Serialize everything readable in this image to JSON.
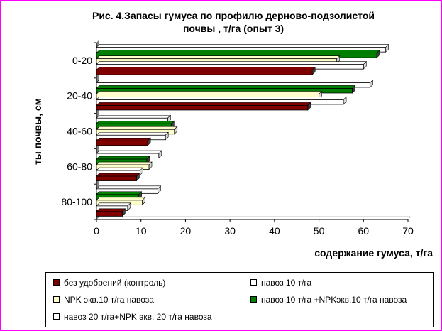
{
  "chart_data": {
    "type": "bar",
    "orientation": "horizontal",
    "title": "Рис. 4.Запасы гумуса по профилю дерново-подзолистой почвы , т/га (опыт 3)",
    "title_lines": [
      "Рис. 4.Запасы гумуса по профилю дерново-подзолистой",
      "почвы , т/га (опыт 3)"
    ],
    "xlabel": "содержание гумуса, т/га",
    "ylabel": "",
    "ylabel_fragment": "ты почвы, см",
    "xlim": [
      0,
      70
    ],
    "xticks": [
      0,
      10,
      20,
      30,
      40,
      50,
      60,
      70
    ],
    "grid": false,
    "legend_position": "bottom",
    "categories": [
      "0-20",
      "20-40",
      "40-60",
      "60-80",
      "80-100"
    ],
    "series": [
      {
        "name": "без удобрений (контроль)",
        "color": "#800000",
        "values": [
          48.5,
          47.5,
          11.5,
          9.0,
          5.8
        ]
      },
      {
        "name": "навоз 10 т/га",
        "color": "#ffffff",
        "values": [
          60.0,
          55.5,
          15.5,
          9.8,
          7.0
        ]
      },
      {
        "name": "NPK экв.10 т/га навоза",
        "color": "#ffffcc",
        "values": [
          54.0,
          50.0,
          17.5,
          11.8,
          10.3
        ]
      },
      {
        "name": "навоз 10 т/га +NPKэкв.10 т/га навоза",
        "color": "#008000",
        "values": [
          63.0,
          57.5,
          16.8,
          11.3,
          9.5
        ]
      },
      {
        "name": "навоз 20 т/га+NPK экв. 20 т/га навоза",
        "color": "#ffffff",
        "values": [
          65.0,
          61.5,
          16.0,
          14.0,
          13.8
        ]
      }
    ]
  }
}
